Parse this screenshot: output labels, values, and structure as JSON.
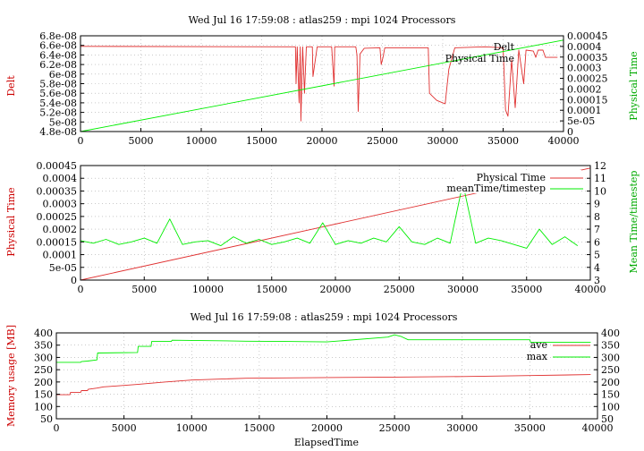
{
  "colors": {
    "red": "#e03030",
    "green": "#00ee00",
    "frame": "#000000",
    "grid": "#aaaaaa"
  },
  "chart_data": [
    {
      "type": "line",
      "title": "Wed Jul 16 17:59:08 : atlas259 : mpi 1024 Processors",
      "xlabel": "",
      "ylabel": "Delt",
      "y2label": "Physical Time",
      "xlim": [
        0,
        40000
      ],
      "ylim": [
        4.8e-08,
        6.8e-08
      ],
      "y2lim": [
        0,
        0.00045
      ],
      "x_ticks": [
        "0",
        "5000",
        "10000",
        "15000",
        "20000",
        "25000",
        "30000",
        "35000",
        "40000"
      ],
      "y_ticks": [
        "4.8e-08",
        "5e-08",
        "5.2e-08",
        "5.4e-08",
        "5.6e-08",
        "5.8e-08",
        "6e-08",
        "6.2e-08",
        "6.4e-08",
        "6.6e-08",
        "6.8e-08"
      ],
      "y2_ticks": [
        "0",
        "5e-05",
        "0.0001",
        "0.00015",
        "0.0002",
        "0.00025",
        "0.0003",
        "0.00035",
        "0.0004",
        "0.00045"
      ],
      "grid": true,
      "legend_position": "top-right",
      "series": [
        {
          "name": "Delt",
          "axis": "y",
          "color": "red",
          "x": [
            0,
            17800,
            17850,
            17950,
            18100,
            18200,
            18250,
            18400,
            18550,
            18700,
            19200,
            19250,
            19600,
            20800,
            21000,
            21050,
            21900,
            22800,
            22900,
            23000,
            23150,
            23500,
            24800,
            24900,
            25050,
            25200,
            28800,
            28900,
            29100,
            29500,
            30000,
            30200,
            30500,
            31000,
            33500,
            35000,
            35200,
            35400,
            35700,
            36000,
            36300,
            36700,
            36900,
            37500,
            37700,
            37900,
            38300,
            38500,
            39500
          ],
          "values": [
            6.58e-08,
            6.57e-08,
            5.8e-08,
            6.57e-08,
            5.4e-08,
            6.57e-08,
            5.02e-08,
            6.57e-08,
            5.6e-08,
            6.57e-08,
            6.57e-08,
            5.95e-08,
            6.57e-08,
            6.57e-08,
            5.75e-08,
            6.57e-08,
            6.57e-08,
            6.57e-08,
            6.4e-08,
            5.22e-08,
            6.42e-08,
            6.54e-08,
            6.55e-08,
            6.2e-08,
            6.35e-08,
            6.55e-08,
            6.55e-08,
            5.6e-08,
            5.55e-08,
            5.45e-08,
            5.4e-08,
            5.38e-08,
            6.1e-08,
            6.55e-08,
            6.57e-08,
            6.55e-08,
            5.25e-08,
            5.12e-08,
            6.3e-08,
            5.3e-08,
            6.5e-08,
            5.8e-08,
            6.5e-08,
            6.48e-08,
            6.35e-08,
            6.5e-08,
            6.5e-08,
            6.35e-08,
            6.35e-08
          ]
        },
        {
          "name": "Physical Time",
          "axis": "y2",
          "color": "green",
          "x": [
            0,
            40000
          ],
          "values": [
            0,
            0.00043
          ]
        }
      ]
    },
    {
      "type": "line",
      "title": "",
      "xlabel": "",
      "ylabel": "Physical Time",
      "y2label": "Mean Time/timestep",
      "xlim": [
        0,
        40000
      ],
      "ylim": [
        0,
        0.00045
      ],
      "y2lim": [
        3,
        12
      ],
      "x_ticks": [
        "0",
        "5000",
        "10000",
        "15000",
        "20000",
        "25000",
        "30000",
        "35000",
        "40000"
      ],
      "y_ticks": [
        "0",
        "5e-05",
        "0.0001",
        "0.00015",
        "0.0002",
        "0.00025",
        "0.0003",
        "0.00035",
        "0.0004",
        "0.00045"
      ],
      "y2_ticks": [
        "3",
        "4",
        "5",
        "6",
        "7",
        "8",
        "9",
        "10",
        "11",
        "12"
      ],
      "grid": true,
      "legend_position": "top-right",
      "series": [
        {
          "name": "Physical Time",
          "axis": "y",
          "color": "red",
          "x": [
            0,
            40000
          ],
          "values": [
            0,
            0.00044
          ]
        },
        {
          "name": "meanTime/timestep",
          "axis": "y2",
          "color": "green",
          "x": [
            0,
            1000,
            2000,
            3000,
            4000,
            5000,
            6000,
            7000,
            8000,
            9000,
            10000,
            11000,
            12000,
            13000,
            14000,
            15000,
            16000,
            17000,
            18000,
            19000,
            20000,
            21000,
            22000,
            23000,
            24000,
            25000,
            26000,
            27000,
            28000,
            29000,
            30000,
            31000,
            32000,
            33000,
            34000,
            35000,
            36000,
            37000,
            38000,
            39000
          ],
          "values": [
            6.1,
            5.9,
            6.2,
            5.8,
            6.0,
            6.3,
            5.9,
            7.8,
            5.8,
            6.0,
            6.1,
            5.7,
            6.4,
            5.9,
            6.2,
            5.8,
            6.0,
            6.3,
            5.9,
            7.5,
            5.8,
            6.1,
            5.9,
            6.3,
            6.0,
            7.2,
            6.0,
            5.8,
            6.3,
            5.9,
            10.6,
            5.9,
            6.3,
            6.1,
            5.8,
            5.5,
            7.0,
            5.8,
            6.4,
            5.7
          ]
        }
      ]
    },
    {
      "type": "line",
      "title": "Wed Jul 16 17:59:08 : atlas259 : mpi 1024 Processors",
      "xlabel": "ElapsedTime",
      "ylabel": "Memory usage [MB]",
      "y2label": "",
      "xlim": [
        0,
        40000
      ],
      "ylim": [
        50,
        400
      ],
      "y2lim": [
        50,
        400
      ],
      "x_ticks": [
        "0",
        "5000",
        "10000",
        "15000",
        "20000",
        "25000",
        "30000",
        "35000",
        "40000"
      ],
      "y_ticks": [
        "50",
        "100",
        "150",
        "200",
        "250",
        "300",
        "350",
        "400"
      ],
      "y2_ticks": [
        "50",
        "100",
        "150",
        "200",
        "250",
        "300",
        "350",
        "400"
      ],
      "grid": true,
      "legend_position": "top-right",
      "series": [
        {
          "name": "ave",
          "axis": "y",
          "color": "red",
          "x": [
            0,
            1000,
            1050,
            1800,
            1850,
            2300,
            2350,
            3000,
            3500,
            4000,
            5000,
            6000,
            8000,
            10000,
            14000,
            20000,
            25000,
            30000,
            35000,
            39500
          ],
          "values": [
            148,
            148,
            158,
            158,
            165,
            165,
            170,
            175,
            180,
            182,
            186,
            190,
            200,
            208,
            215,
            218,
            220,
            222,
            226,
            230
          ]
        },
        {
          "name": "max",
          "axis": "y",
          "color": "green",
          "x": [
            0,
            1800,
            1850,
            2300,
            3000,
            3050,
            6000,
            6050,
            7000,
            7050,
            8500,
            8550,
            12000,
            14000,
            17000,
            20000,
            24500,
            25000,
            25500,
            26000,
            35000,
            35050,
            39500
          ],
          "values": [
            280,
            280,
            283,
            285,
            290,
            318,
            320,
            345,
            345,
            365,
            365,
            370,
            368,
            366,
            365,
            363,
            383,
            392,
            385,
            372,
            372,
            362,
            362
          ]
        }
      ]
    }
  ]
}
